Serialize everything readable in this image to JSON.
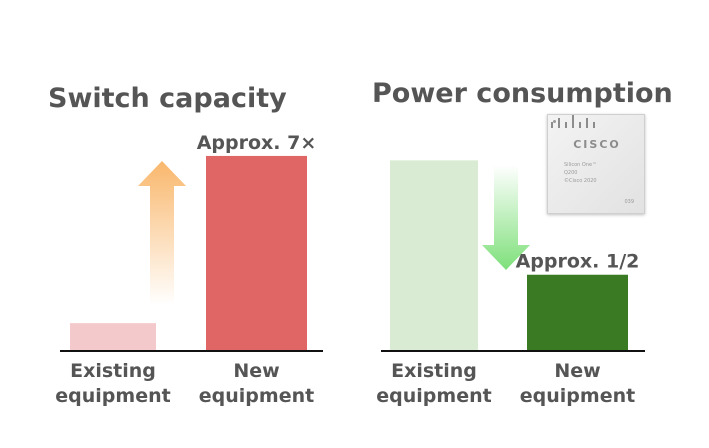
{
  "chart_data": [
    {
      "type": "bar",
      "title": "Switch capacity",
      "categories": [
        "Existing\nequipment",
        "New\nequipment"
      ],
      "values": [
        1,
        7
      ],
      "ylim": [
        0,
        7.5
      ],
      "data_labels": [
        "",
        "Approx. 7×"
      ],
      "colors": [
        "#f4c9cb",
        "#e06565"
      ],
      "arrow": "up",
      "arrow_color": "#f9b76c",
      "grid": false,
      "legend": "none"
    },
    {
      "type": "bar",
      "title": "Power consumption",
      "categories": [
        "Existing\nequipment",
        "New\nequipment"
      ],
      "values": [
        1,
        0.4
      ],
      "ylim": [
        0,
        1.07
      ],
      "data_labels": [
        "",
        "Approx. 1/2"
      ],
      "colors": [
        "#d9ecd3",
        "#3a7a22"
      ],
      "arrow": "down",
      "arrow_color": "#7ee07a",
      "grid": false,
      "legend": "none"
    }
  ],
  "chip": {
    "brand": "CISCO",
    "lines": [
      "Silicon One™",
      "Q200",
      "©Cisco 2020"
    ],
    "code": "039"
  }
}
